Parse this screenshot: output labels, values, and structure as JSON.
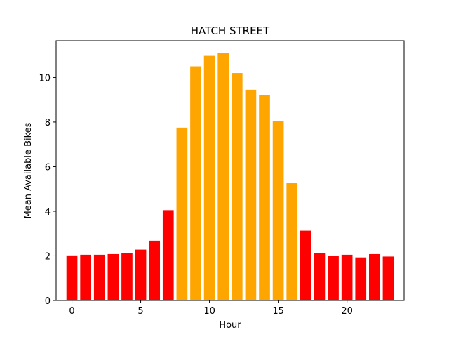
{
  "chart_data": {
    "type": "bar",
    "title": "HATCH STREET",
    "xlabel": "Hour",
    "ylabel": "Mean Available Bikes",
    "x": [
      0,
      1,
      2,
      3,
      4,
      5,
      6,
      7,
      8,
      9,
      10,
      11,
      12,
      13,
      14,
      15,
      16,
      17,
      18,
      19,
      20,
      21,
      22,
      23
    ],
    "values": [
      2.02,
      2.05,
      2.05,
      2.08,
      2.12,
      2.28,
      2.68,
      4.05,
      7.75,
      10.5,
      10.97,
      11.1,
      10.2,
      9.45,
      9.2,
      8.03,
      5.27,
      3.13,
      2.12,
      2.0,
      2.05,
      1.93,
      2.08,
      1.97
    ],
    "colors": [
      "#ff0000",
      "#ff0000",
      "#ff0000",
      "#ff0000",
      "#ff0000",
      "#ff0000",
      "#ff0000",
      "#ff0000",
      "#ffa500",
      "#ffa500",
      "#ffa500",
      "#ffa500",
      "#ffa500",
      "#ffa500",
      "#ffa500",
      "#ffa500",
      "#ffa500",
      "#ff0000",
      "#ff0000",
      "#ff0000",
      "#ff0000",
      "#ff0000",
      "#ff0000",
      "#ff0000"
    ],
    "xlim": [
      -1.15,
      24.15
    ],
    "ylim": [
      0,
      11.65
    ],
    "xticks": [
      0,
      5,
      10,
      15,
      20
    ],
    "yticks": [
      0,
      2,
      4,
      6,
      8,
      10
    ],
    "grid": false,
    "legend": "none"
  }
}
